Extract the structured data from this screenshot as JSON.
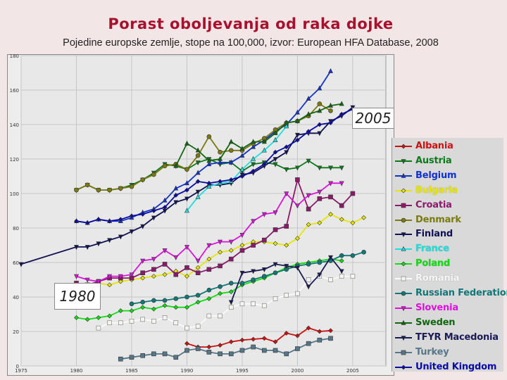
{
  "title": "Porast oboljevanja od raka dojke",
  "subtitle": "Pojedine europske zemlje, stope na 100,000,  izvor: European HFA Database, 2008",
  "annotations": {
    "left": "1980",
    "right": "2005"
  },
  "chart_data": {
    "type": "line",
    "xlim": [
      1975,
      2008
    ],
    "ylim": [
      0,
      180
    ],
    "xticks": [
      1975,
      1980,
      1985,
      1990,
      1995,
      2000,
      2005
    ],
    "yticks": [
      0,
      20,
      40,
      60,
      80,
      100,
      120,
      140,
      160,
      180
    ],
    "grid": true,
    "legend_position": "right",
    "series": [
      {
        "name": "Albania",
        "color": "#cc1111",
        "marker": "diamond",
        "x": [
          1990,
          1991,
          1992,
          1993,
          1994,
          1995,
          1996,
          1997,
          1998,
          1999,
          2000,
          2001,
          2002,
          2003
        ],
        "y": [
          13,
          11,
          11,
          12,
          14,
          15,
          15.5,
          16,
          14,
          19,
          17.5,
          22,
          20,
          20.5
        ]
      },
      {
        "name": "Austria",
        "color": "#0a7a1a",
        "marker": "triangle-down",
        "x": [
          1980,
          1981,
          1982,
          1983,
          1984,
          1985,
          1986,
          1987,
          1988,
          1989,
          1990,
          1991,
          1992,
          1993,
          1994,
          1995,
          1996,
          1997,
          1998,
          1999,
          2000,
          2001,
          2002,
          2003,
          2004
        ],
        "y": [
          102,
          105,
          102,
          102,
          103,
          105,
          108,
          112,
          117,
          116,
          114,
          118,
          120,
          117,
          118,
          113,
          117,
          118,
          117,
          114,
          115,
          119,
          115,
          115,
          115
        ]
      },
      {
        "name": "Belgium",
        "color": "#1133cc",
        "marker": "triangle-up",
        "x": [
          1980,
          1981,
          1982,
          1983,
          1984,
          1985,
          1986,
          1987,
          1988,
          1989,
          1990,
          1991,
          1992,
          1993,
          1994,
          1995,
          1996,
          1997,
          1998,
          1999,
          2000,
          2001,
          2002,
          2003
        ],
        "y": [
          84,
          83,
          85,
          84,
          84,
          86,
          89,
          91,
          96,
          103,
          106,
          112,
          117,
          118,
          118,
          122,
          127,
          131,
          136,
          140,
          147,
          155,
          161,
          171
        ]
      },
      {
        "name": "Bulgaria",
        "color": "#e6e600",
        "marker": "diamond",
        "x": [
          1980,
          1981,
          1982,
          1983,
          1984,
          1985,
          1986,
          1987,
          1988,
          1989,
          1990,
          1991,
          1992,
          1993,
          1994,
          1995,
          1996,
          1997,
          1998,
          1999,
          2000,
          2001,
          2002,
          2003,
          2004,
          2005,
          2006
        ],
        "y": [
          47,
          46,
          48,
          47,
          49,
          50,
          51,
          52,
          53,
          55,
          52,
          57,
          62,
          66,
          67,
          70,
          72,
          72,
          71,
          70,
          74,
          82,
          83,
          88,
          85,
          83,
          86
        ]
      },
      {
        "name": "Croatia",
        "color": "#8b1a6b",
        "marker": "square",
        "x": [
          1980,
          1981,
          1982,
          1983,
          1984,
          1985,
          1986,
          1987,
          1988,
          1989,
          1990,
          1991,
          1992,
          1993,
          1994,
          1995,
          1996,
          1997,
          1998,
          1999,
          2000,
          2001,
          2002,
          2003,
          2004,
          2005
        ],
        "y": [
          48,
          47,
          49,
          51,
          51,
          51,
          54,
          56,
          59,
          53,
          57,
          54,
          56,
          58,
          62,
          67,
          70,
          73,
          79,
          81,
          108,
          91,
          97,
          98,
          93,
          100
        ]
      },
      {
        "name": "Denmark",
        "color": "#7a7a10",
        "marker": "circle",
        "x": [
          1980,
          1981,
          1982,
          1983,
          1984,
          1985,
          1986,
          1987,
          1988,
          1989,
          1990,
          1991,
          1992,
          1993,
          1994,
          1995,
          1996,
          1997,
          1998,
          1999,
          2000,
          2001,
          2002,
          2003
        ],
        "y": [
          102,
          105,
          102,
          102,
          103,
          104,
          108,
          111,
          116,
          117,
          114,
          122,
          133,
          124,
          125,
          125,
          129,
          132,
          137,
          141,
          142,
          145,
          152,
          148
        ]
      },
      {
        "name": "Finland",
        "color": "#111155",
        "marker": "triangle-down",
        "x": [
          1975,
          1980,
          1981,
          1982,
          1983,
          1984,
          1985,
          1986,
          1987,
          1988,
          1989,
          1990,
          1991,
          1992,
          1993,
          1994,
          1995,
          1996,
          1997,
          1998,
          1999,
          2000,
          2001,
          2002,
          2003,
          2004,
          2005
        ],
        "y": [
          59,
          69,
          69,
          71,
          73,
          75,
          78,
          81,
          86,
          90,
          95,
          97,
          101,
          105,
          105,
          106,
          111,
          112,
          116,
          120,
          124,
          134,
          135,
          135,
          142,
          145,
          150
        ]
      },
      {
        "name": "France",
        "color": "#22dddd",
        "marker": "triangle-up",
        "x": [
          1990,
          1991,
          1992,
          1993,
          1994,
          1995,
          1996,
          1997,
          1998,
          1999
        ],
        "y": [
          90,
          98,
          104,
          106,
          107,
          114,
          120,
          125,
          131,
          139
        ]
      },
      {
        "name": "Poland",
        "color": "#11dd11",
        "marker": "diamond",
        "x": [
          1980,
          1981,
          1982,
          1983,
          1984,
          1985,
          1986,
          1987,
          1988,
          1989,
          1990,
          1991,
          1992,
          1993,
          1994,
          1995,
          1996,
          1997,
          1998,
          1999,
          2000,
          2001,
          2002,
          2003,
          2004
        ],
        "y": [
          28,
          27,
          28,
          29,
          32,
          32,
          34,
          33,
          35,
          34,
          34,
          37,
          39,
          42,
          43,
          47,
          49,
          51,
          54,
          57,
          59,
          60,
          61,
          62,
          61
        ]
      },
      {
        "name": "Romania",
        "color": "#f5f5f0",
        "marker": "square",
        "x": [
          1982,
          1983,
          1984,
          1985,
          1986,
          1987,
          1988,
          1989,
          1990,
          1991,
          1992,
          1993,
          1994,
          1995,
          1996,
          1997,
          1998,
          1999,
          2000,
          2001,
          2002,
          2003,
          2004,
          2005
        ],
        "y": [
          22,
          25,
          25,
          26,
          27,
          26,
          28,
          25,
          22,
          23,
          29,
          29,
          34,
          36,
          36,
          35,
          39,
          41,
          42,
          50,
          52,
          50,
          52,
          52
        ]
      },
      {
        "name": "Russian Federation",
        "color": "#117777",
        "marker": "circle",
        "x": [
          1985,
          1986,
          1987,
          1988,
          1989,
          1990,
          1991,
          1992,
          1993,
          1994,
          1995,
          1996,
          1997,
          1998,
          1999,
          2000,
          2001,
          2002,
          2003,
          2004,
          2005,
          2006
        ],
        "y": [
          36,
          37,
          38,
          38,
          39,
          40,
          41,
          44,
          46,
          48,
          48,
          50,
          52,
          54,
          56,
          58,
          59,
          60,
          61,
          64,
          64,
          66
        ]
      },
      {
        "name": "Slovenia",
        "color": "#dd11dd",
        "marker": "triangle-down",
        "x": [
          1980,
          1981,
          1982,
          1983,
          1984,
          1985,
          1986,
          1987,
          1988,
          1989,
          1990,
          1991,
          1992,
          1993,
          1994,
          1995,
          1996,
          1997,
          1998,
          1999,
          2000,
          2001,
          2002,
          2003,
          2004
        ],
        "y": [
          52,
          50,
          49,
          52,
          52,
          53,
          61,
          62,
          67,
          63,
          69,
          61,
          70,
          72,
          72,
          76,
          84,
          88,
          89,
          100,
          93,
          99,
          101,
          106,
          106
        ]
      },
      {
        "name": "Sweden",
        "color": "#116611",
        "marker": "triangle-up",
        "x": [
          1989,
          1990,
          1991,
          1992,
          1993,
          1994,
          1995,
          1996,
          1997,
          1998,
          1999,
          2000,
          2001,
          2002,
          2003,
          2004
        ],
        "y": [
          116,
          129,
          125,
          119,
          120,
          130,
          126,
          130,
          130,
          135,
          141,
          142,
          146,
          148,
          151,
          152
        ]
      },
      {
        "name": "TFYR Macedonia",
        "color": "#1a1a55",
        "marker": "triangle-down",
        "x": [
          1994,
          1995,
          1996,
          1997,
          1998,
          1999,
          2000,
          2001,
          2002,
          2003,
          2004
        ],
        "y": [
          37,
          54,
          55,
          56,
          59,
          58,
          57,
          46,
          53,
          63,
          55
        ]
      },
      {
        "name": "Turkey",
        "color": "#557788",
        "marker": "square",
        "x": [
          1984,
          1985,
          1986,
          1987,
          1988,
          1989,
          1990,
          1991,
          1992,
          1993,
          1994,
          1995,
          1996,
          1997,
          1998,
          1999,
          2000,
          2001,
          2002,
          2003
        ],
        "y": [
          4,
          5,
          6,
          7,
          7,
          5,
          9,
          10,
          8,
          7,
          7,
          9,
          11,
          9,
          9,
          7,
          10,
          13,
          15,
          16
        ]
      },
      {
        "name": "United Kingdom",
        "color": "#0a0aa8",
        "marker": "diamond",
        "x": [
          1980,
          1981,
          1982,
          1983,
          1984,
          1985,
          1986,
          1987,
          1988,
          1989,
          1990,
          1991,
          1992,
          1993,
          1994,
          1995,
          1996,
          1997,
          1998,
          1999,
          2000,
          2001,
          2002,
          2003,
          2004,
          2005
        ],
        "y": [
          84,
          83,
          85,
          84,
          85,
          87,
          88,
          90,
          92,
          99,
          102,
          107,
          106,
          107,
          108,
          110,
          113,
          117,
          124,
          127,
          131,
          136,
          140,
          141,
          146,
          149
        ]
      }
    ]
  }
}
